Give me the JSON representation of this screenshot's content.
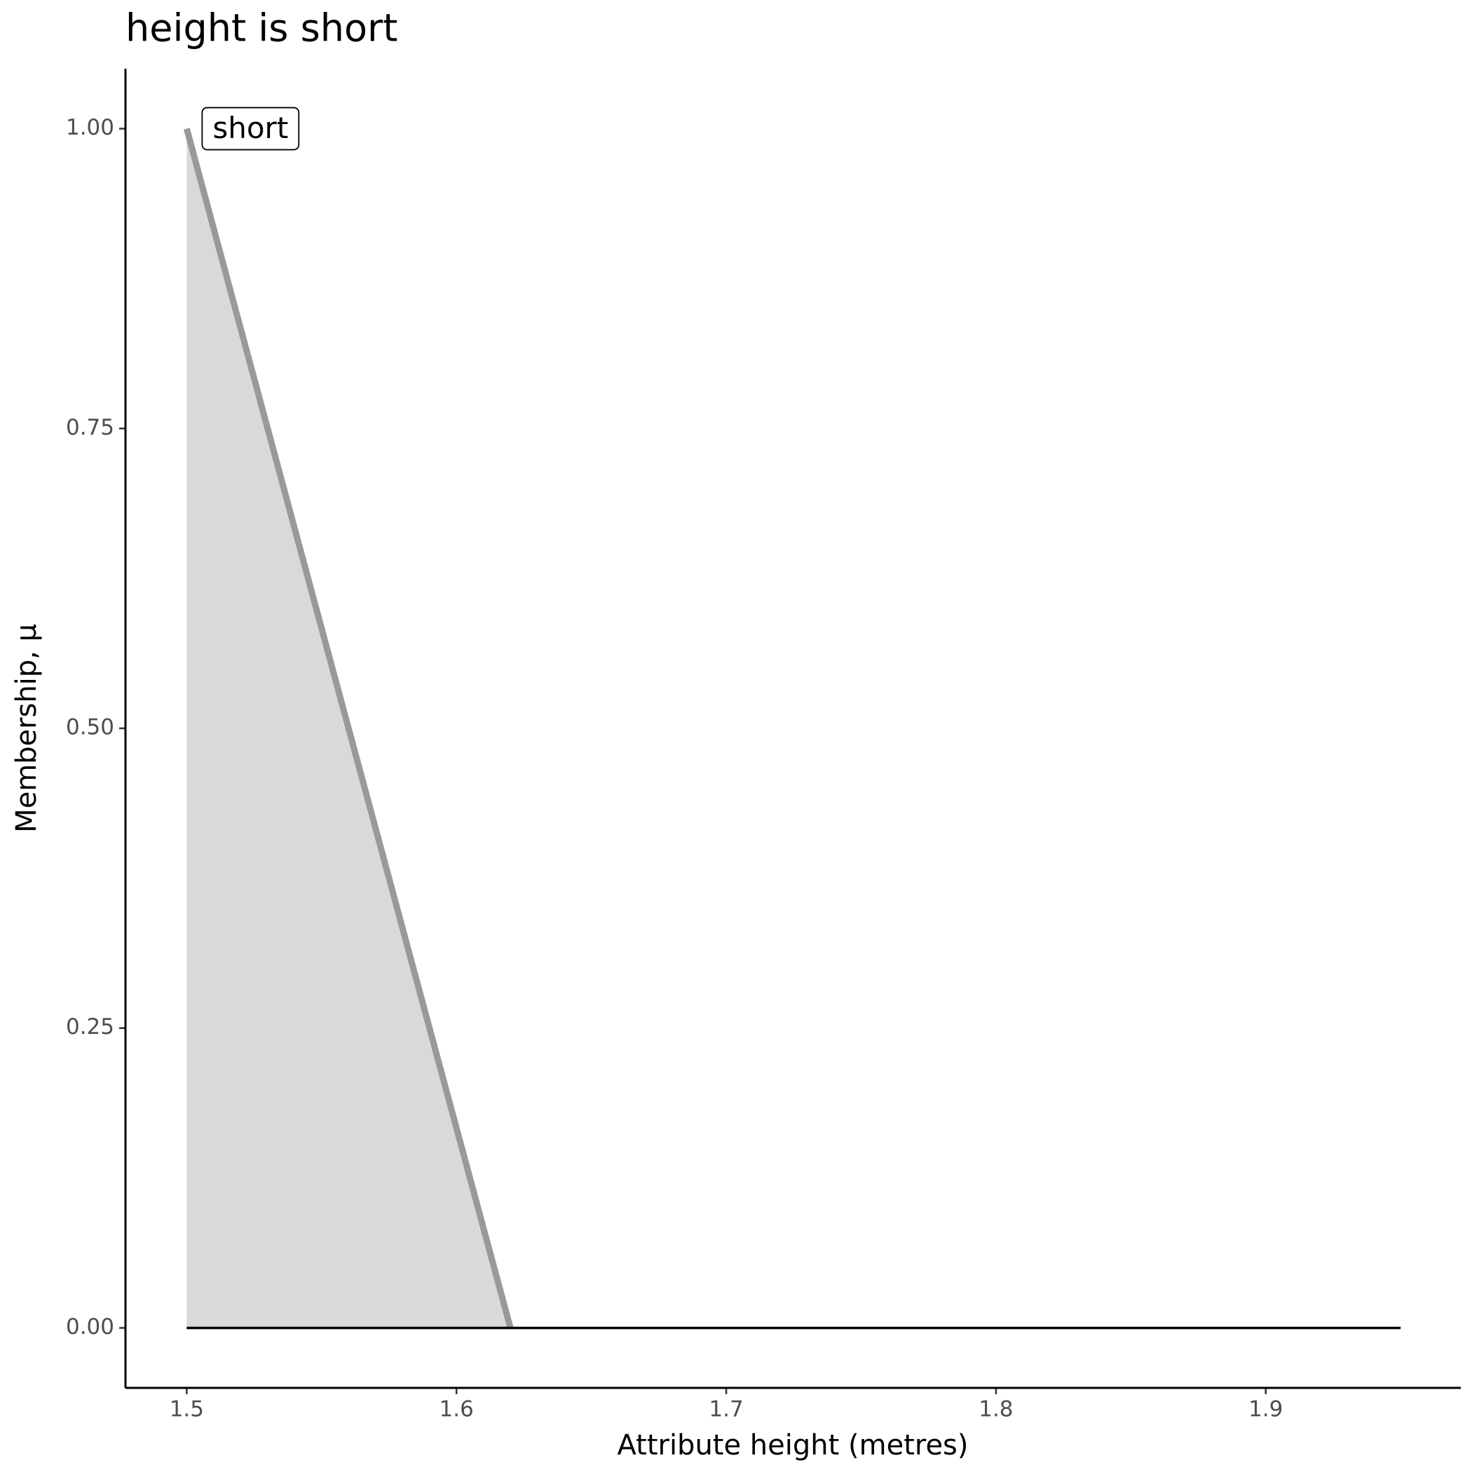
{
  "chart_data": {
    "type": "line",
    "title": "height is short",
    "x_label": "Attribute height (metres)",
    "y_label": "Membership, μ",
    "series": [
      {
        "name": "short",
        "color": "#999999",
        "fill": "#d9d9d9",
        "x": [
          1.5,
          1.62
        ],
        "values": [
          1,
          0
        ]
      },
      {
        "color": "#000000",
        "x": [
          1.5,
          1.95
        ],
        "values": [
          0,
          0
        ]
      }
    ],
    "xlim": [
      1.4773,
      1.9723
    ],
    "ylim": [
      -0.05,
      1.05
    ],
    "xticks": [
      1.5,
      1.6,
      1.7,
      1.8,
      1.9
    ],
    "yticks": [
      {
        "value": 0,
        "label": "0.00"
      },
      {
        "value": 0.25,
        "label": "0.25"
      },
      {
        "value": 0.5,
        "label": "0.50"
      },
      {
        "value": 0.75,
        "label": "0.75"
      },
      {
        "value": 1,
        "label": "1.00"
      }
    ],
    "grid": false
  }
}
